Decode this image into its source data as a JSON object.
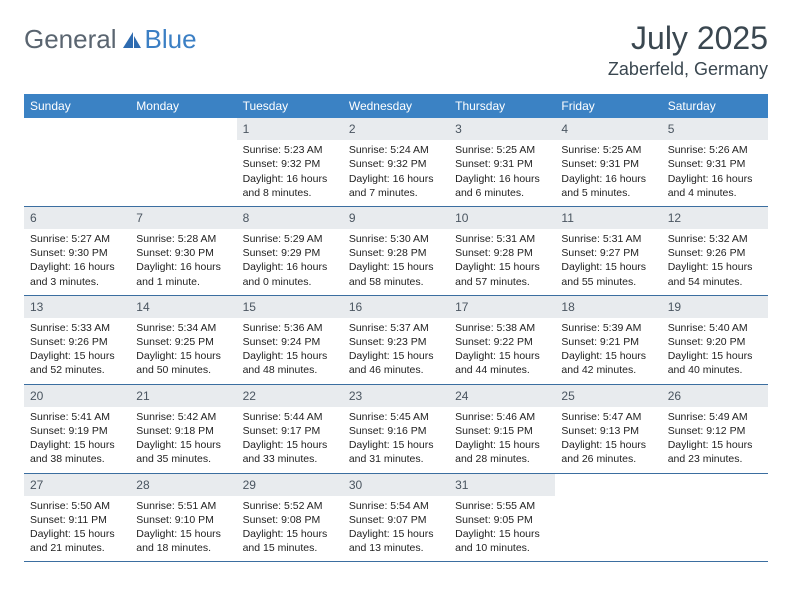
{
  "logo": {
    "t1": "General",
    "t2": "Blue"
  },
  "title": "July 2025",
  "location": "Zaberfeld, Germany",
  "colors": {
    "header_bg": "#3b82c4",
    "header_text": "#ffffff",
    "daynum_bg": "#e8ebee",
    "daynum_text": "#4a5560",
    "rule": "#3b6ea0",
    "logo_gray": "#5a6570",
    "logo_blue": "#3b7fc4",
    "title_color": "#3a4750"
  },
  "weekdays": [
    "Sunday",
    "Monday",
    "Tuesday",
    "Wednesday",
    "Thursday",
    "Friday",
    "Saturday"
  ],
  "weeks": [
    [
      null,
      null,
      {
        "n": "1",
        "l1": "Sunrise: 5:23 AM",
        "l2": "Sunset: 9:32 PM",
        "l3": "Daylight: 16 hours",
        "l4": "and 8 minutes."
      },
      {
        "n": "2",
        "l1": "Sunrise: 5:24 AM",
        "l2": "Sunset: 9:32 PM",
        "l3": "Daylight: 16 hours",
        "l4": "and 7 minutes."
      },
      {
        "n": "3",
        "l1": "Sunrise: 5:25 AM",
        "l2": "Sunset: 9:31 PM",
        "l3": "Daylight: 16 hours",
        "l4": "and 6 minutes."
      },
      {
        "n": "4",
        "l1": "Sunrise: 5:25 AM",
        "l2": "Sunset: 9:31 PM",
        "l3": "Daylight: 16 hours",
        "l4": "and 5 minutes."
      },
      {
        "n": "5",
        "l1": "Sunrise: 5:26 AM",
        "l2": "Sunset: 9:31 PM",
        "l3": "Daylight: 16 hours",
        "l4": "and 4 minutes."
      }
    ],
    [
      {
        "n": "6",
        "l1": "Sunrise: 5:27 AM",
        "l2": "Sunset: 9:30 PM",
        "l3": "Daylight: 16 hours",
        "l4": "and 3 minutes."
      },
      {
        "n": "7",
        "l1": "Sunrise: 5:28 AM",
        "l2": "Sunset: 9:30 PM",
        "l3": "Daylight: 16 hours",
        "l4": "and 1 minute."
      },
      {
        "n": "8",
        "l1": "Sunrise: 5:29 AM",
        "l2": "Sunset: 9:29 PM",
        "l3": "Daylight: 16 hours",
        "l4": "and 0 minutes."
      },
      {
        "n": "9",
        "l1": "Sunrise: 5:30 AM",
        "l2": "Sunset: 9:28 PM",
        "l3": "Daylight: 15 hours",
        "l4": "and 58 minutes."
      },
      {
        "n": "10",
        "l1": "Sunrise: 5:31 AM",
        "l2": "Sunset: 9:28 PM",
        "l3": "Daylight: 15 hours",
        "l4": "and 57 minutes."
      },
      {
        "n": "11",
        "l1": "Sunrise: 5:31 AM",
        "l2": "Sunset: 9:27 PM",
        "l3": "Daylight: 15 hours",
        "l4": "and 55 minutes."
      },
      {
        "n": "12",
        "l1": "Sunrise: 5:32 AM",
        "l2": "Sunset: 9:26 PM",
        "l3": "Daylight: 15 hours",
        "l4": "and 54 minutes."
      }
    ],
    [
      {
        "n": "13",
        "l1": "Sunrise: 5:33 AM",
        "l2": "Sunset: 9:26 PM",
        "l3": "Daylight: 15 hours",
        "l4": "and 52 minutes."
      },
      {
        "n": "14",
        "l1": "Sunrise: 5:34 AM",
        "l2": "Sunset: 9:25 PM",
        "l3": "Daylight: 15 hours",
        "l4": "and 50 minutes."
      },
      {
        "n": "15",
        "l1": "Sunrise: 5:36 AM",
        "l2": "Sunset: 9:24 PM",
        "l3": "Daylight: 15 hours",
        "l4": "and 48 minutes."
      },
      {
        "n": "16",
        "l1": "Sunrise: 5:37 AM",
        "l2": "Sunset: 9:23 PM",
        "l3": "Daylight: 15 hours",
        "l4": "and 46 minutes."
      },
      {
        "n": "17",
        "l1": "Sunrise: 5:38 AM",
        "l2": "Sunset: 9:22 PM",
        "l3": "Daylight: 15 hours",
        "l4": "and 44 minutes."
      },
      {
        "n": "18",
        "l1": "Sunrise: 5:39 AM",
        "l2": "Sunset: 9:21 PM",
        "l3": "Daylight: 15 hours",
        "l4": "and 42 minutes."
      },
      {
        "n": "19",
        "l1": "Sunrise: 5:40 AM",
        "l2": "Sunset: 9:20 PM",
        "l3": "Daylight: 15 hours",
        "l4": "and 40 minutes."
      }
    ],
    [
      {
        "n": "20",
        "l1": "Sunrise: 5:41 AM",
        "l2": "Sunset: 9:19 PM",
        "l3": "Daylight: 15 hours",
        "l4": "and 38 minutes."
      },
      {
        "n": "21",
        "l1": "Sunrise: 5:42 AM",
        "l2": "Sunset: 9:18 PM",
        "l3": "Daylight: 15 hours",
        "l4": "and 35 minutes."
      },
      {
        "n": "22",
        "l1": "Sunrise: 5:44 AM",
        "l2": "Sunset: 9:17 PM",
        "l3": "Daylight: 15 hours",
        "l4": "and 33 minutes."
      },
      {
        "n": "23",
        "l1": "Sunrise: 5:45 AM",
        "l2": "Sunset: 9:16 PM",
        "l3": "Daylight: 15 hours",
        "l4": "and 31 minutes."
      },
      {
        "n": "24",
        "l1": "Sunrise: 5:46 AM",
        "l2": "Sunset: 9:15 PM",
        "l3": "Daylight: 15 hours",
        "l4": "and 28 minutes."
      },
      {
        "n": "25",
        "l1": "Sunrise: 5:47 AM",
        "l2": "Sunset: 9:13 PM",
        "l3": "Daylight: 15 hours",
        "l4": "and 26 minutes."
      },
      {
        "n": "26",
        "l1": "Sunrise: 5:49 AM",
        "l2": "Sunset: 9:12 PM",
        "l3": "Daylight: 15 hours",
        "l4": "and 23 minutes."
      }
    ],
    [
      {
        "n": "27",
        "l1": "Sunrise: 5:50 AM",
        "l2": "Sunset: 9:11 PM",
        "l3": "Daylight: 15 hours",
        "l4": "and 21 minutes."
      },
      {
        "n": "28",
        "l1": "Sunrise: 5:51 AM",
        "l2": "Sunset: 9:10 PM",
        "l3": "Daylight: 15 hours",
        "l4": "and 18 minutes."
      },
      {
        "n": "29",
        "l1": "Sunrise: 5:52 AM",
        "l2": "Sunset: 9:08 PM",
        "l3": "Daylight: 15 hours",
        "l4": "and 15 minutes."
      },
      {
        "n": "30",
        "l1": "Sunrise: 5:54 AM",
        "l2": "Sunset: 9:07 PM",
        "l3": "Daylight: 15 hours",
        "l4": "and 13 minutes."
      },
      {
        "n": "31",
        "l1": "Sunrise: 5:55 AM",
        "l2": "Sunset: 9:05 PM",
        "l3": "Daylight: 15 hours",
        "l4": "and 10 minutes."
      },
      null,
      null
    ]
  ]
}
